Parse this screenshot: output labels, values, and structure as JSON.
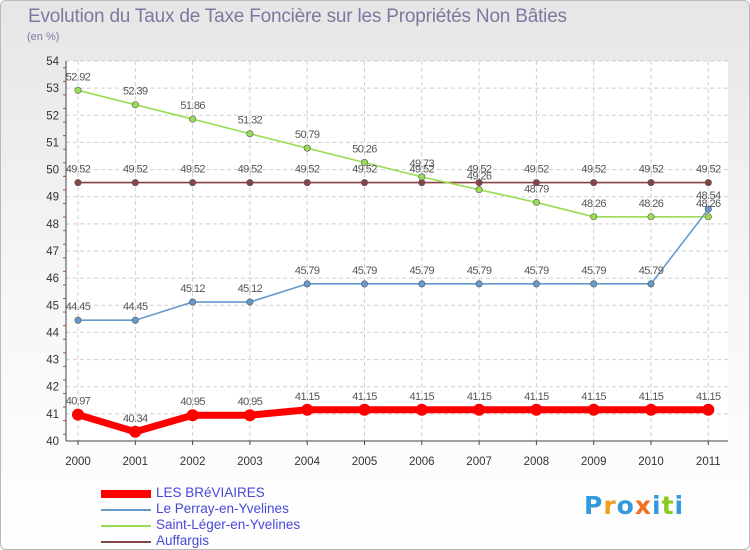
{
  "chart_data": {
    "type": "line",
    "title": "Evolution du Taux de Taxe Foncière sur les Propriétés Non Bâties",
    "subtitle": "(en %)",
    "categories": [
      "2000",
      "2001",
      "2002",
      "2003",
      "2004",
      "2005",
      "2006",
      "2007",
      "2008",
      "2009",
      "2010",
      "2011"
    ],
    "ylim": [
      40,
      54
    ],
    "yticks": [
      40,
      41,
      42,
      43,
      44,
      45,
      46,
      47,
      48,
      49,
      50,
      51,
      52,
      53,
      54
    ],
    "grid": true,
    "legend_position": "bottom-left",
    "series": [
      {
        "name": "LES BRéVIAIRES",
        "color": "#ff0000",
        "values": [
          40.97,
          40.34,
          40.95,
          40.95,
          41.15,
          41.15,
          41.15,
          41.15,
          41.15,
          41.15,
          41.15,
          41.15
        ],
        "labels": [
          "40.97",
          "40.34",
          "40.95",
          "40.95",
          "41.15",
          "41.15",
          "41.15",
          "41.15",
          "41.15",
          "41.15",
          "41.15",
          "41.15"
        ]
      },
      {
        "name": "Le Perray-en-Yvelines",
        "color": "#6699cc",
        "values": [
          44.45,
          44.45,
          45.12,
          45.12,
          45.79,
          45.79,
          45.79,
          45.79,
          45.79,
          45.79,
          45.79,
          48.54
        ],
        "labels": [
          "44.45",
          "44.45",
          "45.12",
          "45.12",
          "45.79",
          "45.79",
          "45.79",
          "45.79",
          "45.79",
          "45.79",
          "45.79",
          "48.54"
        ]
      },
      {
        "name": "Saint-Léger-en-Yvelines",
        "color": "#99dd55",
        "values": [
          52.92,
          52.39,
          51.86,
          51.32,
          50.79,
          50.26,
          49.73,
          49.26,
          48.79,
          48.26,
          48.26,
          48.26
        ],
        "labels": [
          "52.92",
          "52.39",
          "51.86",
          "51.32",
          "50.79",
          "50.26",
          "49.73",
          "49.26",
          "48.79",
          "48.26",
          "48.26",
          "48.26"
        ]
      },
      {
        "name": "Auffargis",
        "color": "#884444",
        "values": [
          49.52,
          49.52,
          49.52,
          49.52,
          49.52,
          49.52,
          49.52,
          49.52,
          49.52,
          49.52,
          49.52,
          49.52
        ],
        "labels": [
          "49.52",
          "49.52",
          "49.52",
          "49.52",
          "49.52",
          "49.52",
          "49.52",
          "49.52",
          "49.52",
          "49.52",
          "49.52",
          "49.52"
        ]
      }
    ]
  },
  "logo": {
    "text": "Proxiti",
    "colors": [
      "#3399dd",
      "#f0a020",
      "#3399dd",
      "#f07020",
      "#3399dd",
      "#88cc22",
      "#3399dd"
    ]
  }
}
